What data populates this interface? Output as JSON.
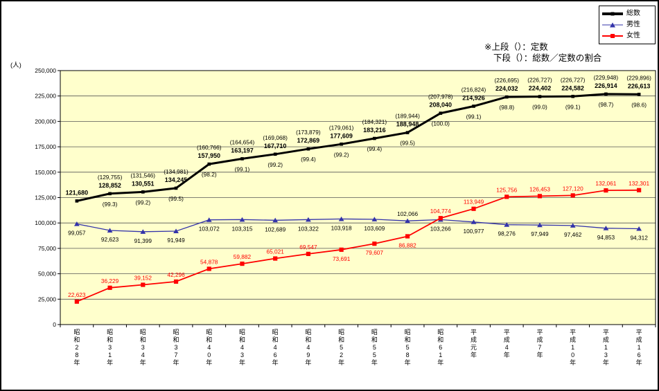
{
  "legend": {
    "items": [
      {
        "label": "総数",
        "color": "#000000"
      },
      {
        "label": "男性",
        "color": "#3333AA"
      },
      {
        "label": "女性",
        "color": "#FF0000"
      }
    ]
  },
  "note": {
    "line1": "※上段（）：定数",
    "line2": "下段（）：総数／定数の割合"
  },
  "chart_data": {
    "type": "line",
    "unit_label": "(人)",
    "ylim": [
      0,
      250000
    ],
    "ytick_step": 25000,
    "plot_bg": "#FFFFCC",
    "grid": "horizontal",
    "legend_position": "top-right",
    "categories": [
      "昭和28年",
      "昭和31年",
      "昭和34年",
      "昭和37年",
      "昭和40年",
      "昭和43年",
      "昭和46年",
      "昭和49年",
      "昭和52年",
      "昭和55年",
      "昭和58年",
      "昭和61年",
      "平成元年",
      "平成4年",
      "平成7年",
      "平成10年",
      "平成13年",
      "平成16年"
    ],
    "series": [
      {
        "name": "総数",
        "color": "#000000",
        "marker": "square",
        "line_width": 3,
        "values": [
          121680,
          128852,
          130551,
          134245,
          157950,
          163197,
          167710,
          172869,
          177609,
          183216,
          188948,
          208040,
          214926,
          224032,
          224402,
          224582,
          226914,
          226613
        ]
      },
      {
        "name": "男性",
        "color": "#3333AA",
        "marker": "triangle",
        "line_width": 1.3,
        "values": [
          99057,
          92623,
          91399,
          91949,
          103072,
          103315,
          102689,
          103322,
          103918,
          103609,
          102066,
          103266,
          100977,
          98276,
          97949,
          97462,
          94853,
          94312
        ]
      },
      {
        "name": "女性",
        "color": "#FF0000",
        "marker": "square",
        "line_width": 1.8,
        "values": [
          22623,
          36229,
          39152,
          42296,
          54878,
          59882,
          65021,
          69547,
          73691,
          79607,
          86882,
          104774,
          113949,
          125756,
          126453,
          127120,
          132061,
          132301
        ]
      }
    ],
    "quota_values": [
      null,
      129755,
      131546,
      134981,
      160766,
      164654,
      169068,
      173879,
      179061,
      184321,
      189944,
      207978,
      216824,
      226695,
      226727,
      226727,
      229948,
      229896
    ],
    "ratio_values": [
      null,
      99.3,
      99.2,
      99.5,
      98.2,
      99.1,
      99.2,
      99.4,
      99.2,
      99.4,
      99.5,
      100.0,
      99.1,
      98.8,
      99.0,
      99.1,
      98.7,
      98.6
    ],
    "label_layout": {
      "male_above_indices": [
        10
      ],
      "female_below_indices": [
        8,
        9,
        10
      ]
    }
  }
}
